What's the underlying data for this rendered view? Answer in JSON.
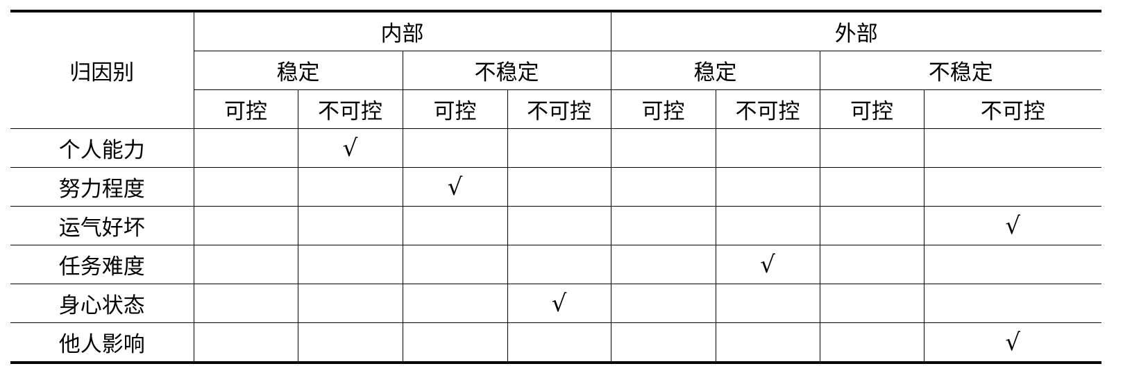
{
  "header": {
    "row_label": "归因别",
    "groups": [
      "内部",
      "外部"
    ],
    "stability": [
      "稳定",
      "不稳定",
      "稳定",
      "不稳定"
    ],
    "control": [
      "可控",
      "不可控",
      "可控",
      "不可控",
      "可控",
      "不可控",
      "可控",
      "不可控"
    ]
  },
  "check_mark": "√",
  "rows": [
    {
      "label": "个人能力",
      "checked_column": 1
    },
    {
      "label": "努力程度",
      "checked_column": 2
    },
    {
      "label": "运气好坏",
      "checked_column": 7
    },
    {
      "label": "任务难度",
      "checked_column": 5
    },
    {
      "label": "身心状态",
      "checked_column": 3
    },
    {
      "label": "他人影响",
      "checked_column": 7
    }
  ]
}
